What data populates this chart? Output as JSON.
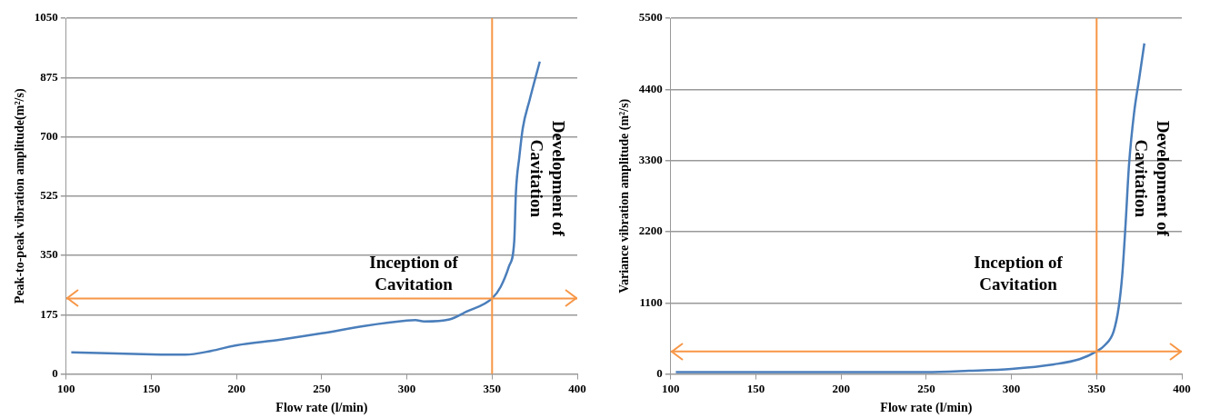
{
  "chart_data": [
    {
      "type": "line",
      "xlabel": "Flow rate (l/min)",
      "ylabel": "Peak-to-peak vibration amplitude(m²/s)",
      "x": [
        103,
        150,
        170,
        185,
        200,
        225,
        250,
        275,
        300,
        305,
        310,
        325,
        335,
        350,
        355,
        360,
        363,
        364,
        366,
        368,
        372,
        378
      ],
      "series": [
        {
          "color": "#4a7ebb",
          "values": [
            64,
            58,
            57,
            68,
            85,
            101,
            120,
            142,
            158,
            159,
            155,
            161,
            184,
            223,
            257,
            319,
            392,
            537,
            641,
            725,
            808,
            922
          ]
        }
      ],
      "xlim": [
        100,
        400
      ],
      "xticks": [
        100,
        150,
        200,
        250,
        300,
        350,
        400
      ],
      "ylim": [
        0,
        1050
      ],
      "yticks": [
        0,
        175,
        350,
        525,
        700,
        875,
        1050
      ],
      "grid": "y",
      "legend": false,
      "marker": "none",
      "line_style": "solid",
      "ref_lines": [
        {
          "axis": "x",
          "value": 350,
          "color": "#f79646"
        },
        {
          "axis": "y",
          "value": 223,
          "color": "#f79646"
        }
      ],
      "annotations": [
        "Inception of Cavitation",
        "Development of Cavitation"
      ]
    },
    {
      "type": "line",
      "xlabel": "Flow rate (l/min)",
      "ylabel": "Variance vibration amplitude (m²/s)",
      "x": [
        103,
        250,
        275,
        300,
        325,
        340,
        350,
        355,
        360,
        363,
        365,
        367,
        369,
        372,
        375,
        378
      ],
      "series": [
        {
          "color": "#4a7ebb",
          "values": [
            30,
            30,
            50,
            80,
            150,
            230,
            350,
            450,
            660,
            1040,
            1520,
            2320,
            3230,
            4040,
            4570,
            5110
          ]
        }
      ],
      "xlim": [
        100,
        400
      ],
      "xticks": [
        100,
        150,
        200,
        250,
        300,
        350,
        400
      ],
      "ylim": [
        0,
        5500
      ],
      "yticks": [
        0,
        1100,
        2200,
        3300,
        4400,
        5500
      ],
      "grid": "y",
      "legend": false,
      "marker": "none",
      "line_style": "solid",
      "ref_lines": [
        {
          "axis": "x",
          "value": 350,
          "color": "#f79646"
        },
        {
          "axis": "y",
          "value": 350,
          "color": "#f79646"
        }
      ],
      "annotations": [
        "Inception of Cavitation",
        "Development of Cavitation"
      ]
    }
  ]
}
